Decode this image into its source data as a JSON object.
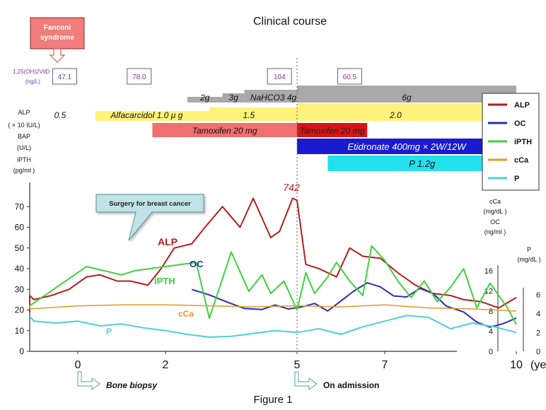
{
  "chart_data": {
    "type": "line",
    "title": "Clinical course",
    "caption": "Figure 1",
    "x_unit_label": "(years)",
    "x_ticks": [
      0,
      2,
      5,
      7,
      10
    ],
    "xlim": [
      -1.5,
      10
    ],
    "left_axis_label_lines": [
      "ALP",
      "( × 10 IU/L)",
      "BAP",
      "(U/L)",
      "iPTH",
      "(pg/ml )"
    ],
    "left_ticks": [
      0,
      10,
      20,
      30,
      40,
      50,
      60,
      70
    ],
    "ylim": [
      0,
      80
    ],
    "ca_axis_label_lines": [
      "cCa",
      "(mg/dL )",
      "OC",
      "(ng/ml )"
    ],
    "ca_ticks": [
      0,
      4,
      8,
      12,
      16
    ],
    "p_axis_label_lines": [
      "P",
      "(mg/dL )"
    ],
    "p_ticks": [
      0,
      2,
      4,
      6
    ],
    "annotations": {
      "fanconi": [
        "Fanconi",
        "syndrome"
      ],
      "surgery": "Surgery for breast cancer",
      "bone_biopsy": "Bone biopsy",
      "admission": "On admission",
      "alp_peak": "742"
    },
    "vitd": {
      "label_lines": [
        "1,25(OH)2VitD",
        "(ng/L)"
      ],
      "values": [
        {
          "x": -0.3,
          "value": "47.1"
        },
        {
          "x": 1.4,
          "value": "78.0"
        },
        {
          "x": 4.6,
          "value": "104"
        },
        {
          "x": 6.2,
          "value": "60.5"
        }
      ]
    },
    "treatments": {
      "nahco3": {
        "segments": [
          {
            "start": 2.5,
            "end": 3.3,
            "label": "2g"
          },
          {
            "start": 3.3,
            "end": 3.8,
            "label": "3g"
          },
          {
            "start": 3.8,
            "end": 5.0,
            "label": "NaHCO3 4g"
          },
          {
            "start": 5.0,
            "end": 10.0,
            "label": "6g"
          }
        ]
      },
      "alfacarcidol": {
        "segments": [
          {
            "start": -0.7,
            "end": 0.4,
            "label": "0.5"
          },
          {
            "start": 0.4,
            "end": 3.0,
            "label": "Alfacarcidol 1.0 μ g"
          },
          {
            "start": 3.0,
            "end": 5.0,
            "label": "1.5"
          },
          {
            "start": 5.0,
            "end": 10.0,
            "label": "2.0"
          }
        ]
      },
      "tamoxifen": {
        "segments": [
          {
            "start": 1.7,
            "end": 5.0,
            "label": "Tamoxifen 20 mg"
          },
          {
            "start": 5.0,
            "end": 6.6,
            "label": "Tamoxifen 20 mg"
          }
        ]
      },
      "etidronate": {
        "segments": [
          {
            "start": 5.0,
            "end": 10.0,
            "label": "Etidronate 400mg × 2W/12W"
          }
        ]
      },
      "phosphate": {
        "segments": [
          {
            "start": 5.7,
            "end": 10.0,
            "label": "P 1.2g"
          }
        ]
      }
    },
    "legend": [
      {
        "name": "ALP",
        "color": "#b81c1c"
      },
      {
        "name": "OC",
        "color": "#2b2fb0"
      },
      {
        "name": "iPTH",
        "color": "#3dd23d"
      },
      {
        "name": "cCa",
        "color": "#e09a2a"
      },
      {
        "name": "P",
        "color": "#4dcfd6"
      }
    ],
    "series": [
      {
        "name": "ALP",
        "axis": "left",
        "color": "#b81c1c",
        "x": [
          -1.5,
          -1.3,
          -1.0,
          -0.6,
          -0.2,
          0.2,
          0.5,
          0.9,
          1.2,
          1.6,
          1.9,
          2.2,
          2.6,
          2.9,
          3.3,
          3.7,
          4.0,
          4.4,
          4.6,
          4.9,
          5.0,
          5.2,
          5.5,
          5.9,
          6.2,
          6.5,
          6.9,
          7.3,
          7.7,
          8.1,
          8.5,
          8.8,
          9.2,
          9.6,
          10.0
        ],
        "y": [
          19,
          27,
          25,
          27,
          30,
          36,
          37,
          34,
          34,
          32,
          40,
          50,
          52,
          60,
          70,
          60,
          74,
          55,
          58,
          74,
          73,
          42,
          40,
          36,
          50,
          46,
          45,
          38,
          32,
          28,
          27,
          25,
          24,
          21,
          26
        ]
      },
      {
        "name": "OC",
        "axis": "ca",
        "color": "#2b2fb0",
        "x": [
          2.6,
          3.0,
          3.4,
          3.8,
          4.2,
          4.5,
          4.8,
          5.1,
          5.4,
          5.7,
          6.0,
          6.3,
          6.6,
          6.9,
          7.2,
          7.5,
          7.8,
          8.1,
          8.4,
          8.8,
          9.1,
          9.4,
          9.7,
          10.0
        ],
        "y": [
          12.3,
          11.2,
          9.8,
          8.5,
          8.3,
          9.2,
          8.4,
          8.8,
          9.5,
          8.0,
          10.0,
          12.0,
          13.6,
          12.8,
          11.0,
          10.8,
          12.5,
          11.5,
          9.0,
          7.8,
          5.8,
          4.8,
          5.5,
          6.6
        ]
      },
      {
        "name": "iPTH",
        "axis": "left",
        "color": "#3dd23d",
        "x": [
          -1.5,
          -1.3,
          0.2,
          1.0,
          1.3,
          2.7,
          3.0,
          3.5,
          3.9,
          4.2,
          4.4,
          4.7,
          5.0,
          5.2,
          5.4,
          5.7,
          5.9,
          6.2,
          6.5,
          6.7,
          7.0,
          7.3,
          7.6,
          7.9,
          8.2,
          8.5,
          8.8,
          9.1,
          9.4,
          9.8,
          10.0
        ],
        "y": [
          21,
          22,
          41,
          37,
          39,
          43,
          16,
          48,
          29,
          37,
          28,
          34,
          20,
          38,
          28,
          36,
          43,
          34,
          27,
          51,
          44,
          34,
          26,
          34,
          24,
          31,
          40,
          21,
          33,
          21,
          13
        ]
      },
      {
        "name": "cCa",
        "axis": "left",
        "color": "#e09a2a",
        "x": [
          -1.5,
          0.0,
          1.0,
          2.0,
          3.0,
          4.0,
          5.0,
          6.0,
          7.0,
          8.0,
          9.0,
          10.0
        ],
        "y": [
          20.5,
          22,
          22.5,
          22.5,
          22,
          21.5,
          22,
          21.5,
          22.5,
          21,
          20.5,
          19.5
        ]
      },
      {
        "name": "P",
        "axis": "p",
        "color": "#4dcfd6",
        "x": [
          -1.5,
          -1.0,
          -0.5,
          0.0,
          0.5,
          1.0,
          1.5,
          2.0,
          2.5,
          3.0,
          3.5,
          4.0,
          4.5,
          5.0,
          5.5,
          6.0,
          6.5,
          7.0,
          7.5,
          8.0,
          8.5,
          9.0,
          9.5,
          10.0
        ],
        "y": [
          3.7,
          3.2,
          3.0,
          3.2,
          2.7,
          2.9,
          2.5,
          2.2,
          1.8,
          1.5,
          1.6,
          1.9,
          2.2,
          2.0,
          2.4,
          1.8,
          2.6,
          3.2,
          3.8,
          3.6,
          2.4,
          3.0,
          2.6,
          2.0
        ]
      }
    ]
  }
}
